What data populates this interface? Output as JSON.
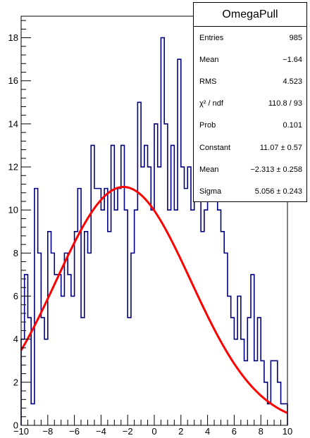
{
  "chart_data": {
    "type": "histogram",
    "title": "",
    "xlabel": "",
    "ylabel": "",
    "xlim": [
      -10,
      10
    ],
    "ylim": [
      0,
      19
    ],
    "grid": false,
    "bin_width": 0.25,
    "x_ticks": [
      "−10",
      "−8",
      "−6",
      "−4",
      "−2",
      "0",
      "2",
      "4",
      "6",
      "8",
      "10"
    ],
    "y_ticks": [
      "0",
      "2",
      "4",
      "6",
      "8",
      "10",
      "12",
      "14",
      "16",
      "18"
    ],
    "histogram_values": [
      4,
      7,
      5,
      1,
      11,
      8,
      5,
      4,
      9,
      8,
      7,
      7,
      6,
      8,
      7,
      6,
      9,
      11,
      5,
      9,
      8,
      13,
      11,
      11,
      10,
      11,
      9,
      13,
      10,
      11,
      13,
      10,
      5,
      8,
      10,
      15,
      12,
      13,
      12,
      10,
      14,
      12,
      18,
      14,
      10,
      13,
      10,
      17,
      12,
      11,
      12,
      10,
      14,
      15,
      9,
      10,
      12,
      11,
      12,
      10,
      9,
      8,
      6,
      5,
      4,
      6,
      4,
      3,
      5,
      7,
      3,
      5,
      3,
      2,
      1,
      3,
      3,
      2,
      1,
      1
    ],
    "series": [
      {
        "type": "histogram",
        "color": "#000080"
      },
      {
        "type": "gaussian-fit",
        "color": "#ff0000",
        "constant": 11.07,
        "mean": -2.313,
        "sigma": 5.056
      }
    ]
  },
  "statbox": {
    "title": "OmegaPull",
    "rows": [
      {
        "label": "Entries",
        "value": "985"
      },
      {
        "label": "Mean",
        "value": "−1.64"
      },
      {
        "label": "RMS",
        "value": "4.523"
      },
      {
        "label": "χ² / ndf",
        "value": "110.8 / 93"
      },
      {
        "label": "Prob",
        "value": "0.101"
      },
      {
        "label": "Constant",
        "value": "11.07 ± 0.57"
      },
      {
        "label": "Mean",
        "value": "−2.313 ± 0.258"
      },
      {
        "label": "Sigma",
        "value": "5.056 ± 0.243"
      }
    ]
  }
}
